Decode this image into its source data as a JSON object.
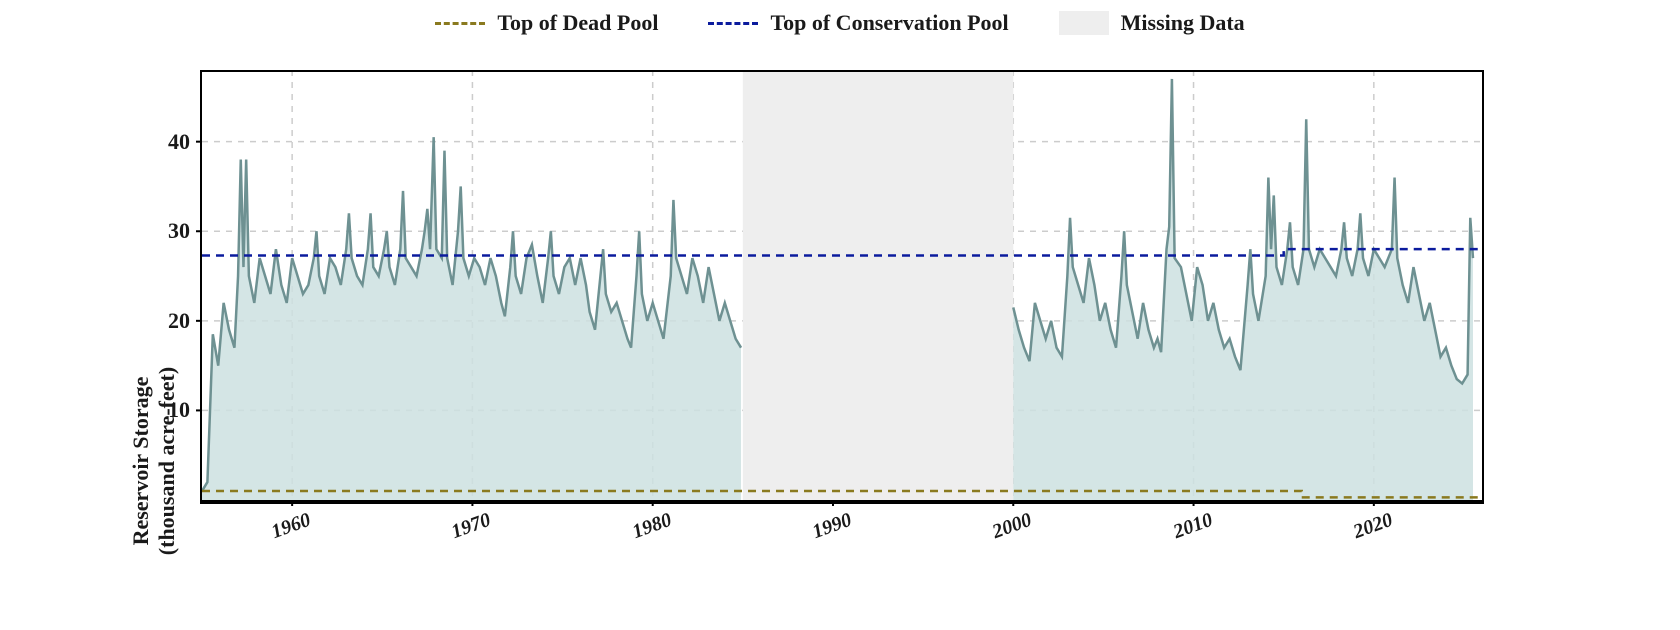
{
  "legend": {
    "dead_pool": "Top of Dead Pool",
    "conservation_pool": "Top of Conservation Pool",
    "missing_data": "Missing Data"
  },
  "colors": {
    "dead_pool_line": "#8a7a1f",
    "conservation_line": "#0b1b9d",
    "missing_data_fill": "#eeeeee",
    "series_line": "#6e9192",
    "series_fill": "#cde1e1",
    "grid": "#cccccc",
    "axis": "#000000",
    "text": "#1a1a1a",
    "background": "#ffffff"
  },
  "chart": {
    "type": "area",
    "ylabel_line1": "Reservoir Storage",
    "ylabel_line2": "(thousand acre-feet)",
    "xlim": [
      1955,
      2026
    ],
    "ylim": [
      0,
      48
    ],
    "yticks": [
      10,
      20,
      30,
      40
    ],
    "xticks": [
      1960,
      1970,
      1980,
      1990,
      2000,
      2010,
      2020
    ],
    "missing_data_range": [
      1985,
      2000
    ],
    "dead_pool_level_pre": 1.0,
    "dead_pool_level_post": 0.3,
    "dead_pool_step_year": 2016,
    "conservation_level_pre": 27.3,
    "conservation_level_post": 28.0,
    "conservation_step_year": 2015,
    "line_width": 2.5,
    "dash_pattern": "8 6",
    "series": [
      {
        "x": 1955.0,
        "y": 1.0
      },
      {
        "x": 1955.3,
        "y": 2.0
      },
      {
        "x": 1955.6,
        "y": 18.5
      },
      {
        "x": 1955.9,
        "y": 15.0
      },
      {
        "x": 1956.2,
        "y": 22.0
      },
      {
        "x": 1956.5,
        "y": 19.0
      },
      {
        "x": 1956.8,
        "y": 17.0
      },
      {
        "x": 1957.0,
        "y": 25.0
      },
      {
        "x": 1957.15,
        "y": 38.0
      },
      {
        "x": 1957.3,
        "y": 26.0
      },
      {
        "x": 1957.45,
        "y": 38.0
      },
      {
        "x": 1957.6,
        "y": 25.0
      },
      {
        "x": 1957.9,
        "y": 22.0
      },
      {
        "x": 1958.2,
        "y": 27.0
      },
      {
        "x": 1958.5,
        "y": 25.0
      },
      {
        "x": 1958.8,
        "y": 23.0
      },
      {
        "x": 1959.1,
        "y": 28.0
      },
      {
        "x": 1959.4,
        "y": 24.0
      },
      {
        "x": 1959.7,
        "y": 22.0
      },
      {
        "x": 1960.0,
        "y": 27.0
      },
      {
        "x": 1960.3,
        "y": 25.0
      },
      {
        "x": 1960.6,
        "y": 23.0
      },
      {
        "x": 1960.9,
        "y": 24.0
      },
      {
        "x": 1961.2,
        "y": 27.0
      },
      {
        "x": 1961.35,
        "y": 30.0
      },
      {
        "x": 1961.5,
        "y": 25.0
      },
      {
        "x": 1961.8,
        "y": 23.0
      },
      {
        "x": 1962.1,
        "y": 27.0
      },
      {
        "x": 1962.4,
        "y": 26.0
      },
      {
        "x": 1962.7,
        "y": 24.0
      },
      {
        "x": 1963.0,
        "y": 28.0
      },
      {
        "x": 1963.15,
        "y": 32.0
      },
      {
        "x": 1963.3,
        "y": 27.0
      },
      {
        "x": 1963.6,
        "y": 25.0
      },
      {
        "x": 1963.9,
        "y": 24.0
      },
      {
        "x": 1964.2,
        "y": 28.0
      },
      {
        "x": 1964.35,
        "y": 32.0
      },
      {
        "x": 1964.5,
        "y": 26.0
      },
      {
        "x": 1964.8,
        "y": 25.0
      },
      {
        "x": 1965.1,
        "y": 28.0
      },
      {
        "x": 1965.25,
        "y": 30.0
      },
      {
        "x": 1965.4,
        "y": 26.0
      },
      {
        "x": 1965.7,
        "y": 24.0
      },
      {
        "x": 1966.0,
        "y": 28.0
      },
      {
        "x": 1966.15,
        "y": 34.5
      },
      {
        "x": 1966.3,
        "y": 27.0
      },
      {
        "x": 1966.6,
        "y": 26.0
      },
      {
        "x": 1966.9,
        "y": 25.0
      },
      {
        "x": 1967.2,
        "y": 28.0
      },
      {
        "x": 1967.35,
        "y": 30.0
      },
      {
        "x": 1967.5,
        "y": 32.5
      },
      {
        "x": 1967.65,
        "y": 28.0
      },
      {
        "x": 1967.85,
        "y": 40.5
      },
      {
        "x": 1968.0,
        "y": 28.0
      },
      {
        "x": 1968.3,
        "y": 27.0
      },
      {
        "x": 1968.45,
        "y": 39.0
      },
      {
        "x": 1968.6,
        "y": 27.0
      },
      {
        "x": 1968.9,
        "y": 24.0
      },
      {
        "x": 1969.2,
        "y": 30.0
      },
      {
        "x": 1969.35,
        "y": 35.0
      },
      {
        "x": 1969.5,
        "y": 27.0
      },
      {
        "x": 1969.8,
        "y": 25.0
      },
      {
        "x": 1970.1,
        "y": 27.0
      },
      {
        "x": 1970.4,
        "y": 26.0
      },
      {
        "x": 1970.7,
        "y": 24.0
      },
      {
        "x": 1971.0,
        "y": 27.0
      },
      {
        "x": 1971.3,
        "y": 25.0
      },
      {
        "x": 1971.6,
        "y": 22.0
      },
      {
        "x": 1971.8,
        "y": 20.5
      },
      {
        "x": 1972.1,
        "y": 26.0
      },
      {
        "x": 1972.25,
        "y": 30.0
      },
      {
        "x": 1972.4,
        "y": 25.0
      },
      {
        "x": 1972.7,
        "y": 23.0
      },
      {
        "x": 1973.0,
        "y": 27.0
      },
      {
        "x": 1973.3,
        "y": 28.5
      },
      {
        "x": 1973.6,
        "y": 25.0
      },
      {
        "x": 1973.9,
        "y": 22.0
      },
      {
        "x": 1974.2,
        "y": 27.0
      },
      {
        "x": 1974.35,
        "y": 30.0
      },
      {
        "x": 1974.5,
        "y": 25.0
      },
      {
        "x": 1974.8,
        "y": 23.0
      },
      {
        "x": 1975.1,
        "y": 26.0
      },
      {
        "x": 1975.4,
        "y": 27.0
      },
      {
        "x": 1975.7,
        "y": 24.0
      },
      {
        "x": 1976.0,
        "y": 27.0
      },
      {
        "x": 1976.3,
        "y": 24.0
      },
      {
        "x": 1976.5,
        "y": 21.0
      },
      {
        "x": 1976.8,
        "y": 19.0
      },
      {
        "x": 1977.1,
        "y": 25.0
      },
      {
        "x": 1977.25,
        "y": 28.0
      },
      {
        "x": 1977.4,
        "y": 23.0
      },
      {
        "x": 1977.7,
        "y": 21.0
      },
      {
        "x": 1978.0,
        "y": 22.0
      },
      {
        "x": 1978.3,
        "y": 20.0
      },
      {
        "x": 1978.6,
        "y": 18.0
      },
      {
        "x": 1978.8,
        "y": 17.0
      },
      {
        "x": 1979.1,
        "y": 25.0
      },
      {
        "x": 1979.25,
        "y": 30.0
      },
      {
        "x": 1979.4,
        "y": 23.0
      },
      {
        "x": 1979.7,
        "y": 20.0
      },
      {
        "x": 1980.0,
        "y": 22.0
      },
      {
        "x": 1980.3,
        "y": 20.0
      },
      {
        "x": 1980.6,
        "y": 18.0
      },
      {
        "x": 1981.0,
        "y": 25.0
      },
      {
        "x": 1981.15,
        "y": 33.5
      },
      {
        "x": 1981.3,
        "y": 27.0
      },
      {
        "x": 1981.6,
        "y": 25.0
      },
      {
        "x": 1981.9,
        "y": 23.0
      },
      {
        "x": 1982.2,
        "y": 27.0
      },
      {
        "x": 1982.5,
        "y": 25.0
      },
      {
        "x": 1982.8,
        "y": 22.0
      },
      {
        "x": 1983.1,
        "y": 26.0
      },
      {
        "x": 1983.4,
        "y": 23.0
      },
      {
        "x": 1983.7,
        "y": 20.0
      },
      {
        "x": 1984.0,
        "y": 22.0
      },
      {
        "x": 1984.3,
        "y": 20.0
      },
      {
        "x": 1984.6,
        "y": 18.0
      },
      {
        "x": 1984.9,
        "y": 17.0
      }
    ],
    "series_post": [
      {
        "x": 2000.0,
        "y": 21.5
      },
      {
        "x": 2000.3,
        "y": 19.0
      },
      {
        "x": 2000.6,
        "y": 17.0
      },
      {
        "x": 2000.9,
        "y": 15.5
      },
      {
        "x": 2001.2,
        "y": 22.0
      },
      {
        "x": 2001.5,
        "y": 20.0
      },
      {
        "x": 2001.8,
        "y": 18.0
      },
      {
        "x": 2002.1,
        "y": 20.0
      },
      {
        "x": 2002.4,
        "y": 17.0
      },
      {
        "x": 2002.7,
        "y": 16.0
      },
      {
        "x": 2003.0,
        "y": 25.0
      },
      {
        "x": 2003.15,
        "y": 31.5
      },
      {
        "x": 2003.3,
        "y": 26.0
      },
      {
        "x": 2003.6,
        "y": 24.0
      },
      {
        "x": 2003.9,
        "y": 22.0
      },
      {
        "x": 2004.2,
        "y": 27.0
      },
      {
        "x": 2004.5,
        "y": 24.0
      },
      {
        "x": 2004.8,
        "y": 20.0
      },
      {
        "x": 2005.1,
        "y": 22.0
      },
      {
        "x": 2005.4,
        "y": 19.0
      },
      {
        "x": 2005.7,
        "y": 17.0
      },
      {
        "x": 2006.0,
        "y": 25.0
      },
      {
        "x": 2006.15,
        "y": 30.0
      },
      {
        "x": 2006.3,
        "y": 24.0
      },
      {
        "x": 2006.6,
        "y": 21.0
      },
      {
        "x": 2006.9,
        "y": 18.0
      },
      {
        "x": 2007.2,
        "y": 22.0
      },
      {
        "x": 2007.5,
        "y": 19.0
      },
      {
        "x": 2007.8,
        "y": 17.0
      },
      {
        "x": 2008.0,
        "y": 18.0
      },
      {
        "x": 2008.2,
        "y": 16.5
      },
      {
        "x": 2008.5,
        "y": 28.0
      },
      {
        "x": 2008.65,
        "y": 30.5
      },
      {
        "x": 2008.8,
        "y": 47.0
      },
      {
        "x": 2008.95,
        "y": 27.0
      },
      {
        "x": 2009.3,
        "y": 26.0
      },
      {
        "x": 2009.6,
        "y": 23.0
      },
      {
        "x": 2009.9,
        "y": 20.0
      },
      {
        "x": 2010.2,
        "y": 26.0
      },
      {
        "x": 2010.5,
        "y": 24.0
      },
      {
        "x": 2010.8,
        "y": 20.0
      },
      {
        "x": 2011.1,
        "y": 22.0
      },
      {
        "x": 2011.4,
        "y": 19.0
      },
      {
        "x": 2011.7,
        "y": 17.0
      },
      {
        "x": 2012.0,
        "y": 18.0
      },
      {
        "x": 2012.3,
        "y": 16.0
      },
      {
        "x": 2012.6,
        "y": 14.5
      },
      {
        "x": 2013.0,
        "y": 24.0
      },
      {
        "x": 2013.15,
        "y": 28.0
      },
      {
        "x": 2013.3,
        "y": 23.0
      },
      {
        "x": 2013.6,
        "y": 20.0
      },
      {
        "x": 2014.0,
        "y": 25.0
      },
      {
        "x": 2014.15,
        "y": 36.0
      },
      {
        "x": 2014.3,
        "y": 28.0
      },
      {
        "x": 2014.45,
        "y": 34.0
      },
      {
        "x": 2014.6,
        "y": 26.0
      },
      {
        "x": 2014.9,
        "y": 24.0
      },
      {
        "x": 2015.2,
        "y": 28.0
      },
      {
        "x": 2015.35,
        "y": 31.0
      },
      {
        "x": 2015.5,
        "y": 26.0
      },
      {
        "x": 2015.8,
        "y": 24.0
      },
      {
        "x": 2016.1,
        "y": 28.0
      },
      {
        "x": 2016.25,
        "y": 42.5
      },
      {
        "x": 2016.4,
        "y": 28.0
      },
      {
        "x": 2016.7,
        "y": 26.0
      },
      {
        "x": 2017.0,
        "y": 28.0
      },
      {
        "x": 2017.3,
        "y": 27.0
      },
      {
        "x": 2017.6,
        "y": 26.0
      },
      {
        "x": 2017.9,
        "y": 25.0
      },
      {
        "x": 2018.2,
        "y": 28.0
      },
      {
        "x": 2018.35,
        "y": 31.0
      },
      {
        "x": 2018.5,
        "y": 27.0
      },
      {
        "x": 2018.8,
        "y": 25.0
      },
      {
        "x": 2019.1,
        "y": 28.0
      },
      {
        "x": 2019.25,
        "y": 32.0
      },
      {
        "x": 2019.4,
        "y": 27.0
      },
      {
        "x": 2019.7,
        "y": 25.0
      },
      {
        "x": 2020.0,
        "y": 28.0
      },
      {
        "x": 2020.3,
        "y": 27.0
      },
      {
        "x": 2020.6,
        "y": 26.0
      },
      {
        "x": 2021.0,
        "y": 28.0
      },
      {
        "x": 2021.15,
        "y": 36.0
      },
      {
        "x": 2021.3,
        "y": 27.0
      },
      {
        "x": 2021.6,
        "y": 24.0
      },
      {
        "x": 2021.9,
        "y": 22.0
      },
      {
        "x": 2022.2,
        "y": 26.0
      },
      {
        "x": 2022.5,
        "y": 23.0
      },
      {
        "x": 2022.8,
        "y": 20.0
      },
      {
        "x": 2023.1,
        "y": 22.0
      },
      {
        "x": 2023.4,
        "y": 19.0
      },
      {
        "x": 2023.7,
        "y": 16.0
      },
      {
        "x": 2024.0,
        "y": 17.0
      },
      {
        "x": 2024.3,
        "y": 15.0
      },
      {
        "x": 2024.6,
        "y": 13.5
      },
      {
        "x": 2024.9,
        "y": 13.0
      },
      {
        "x": 2025.2,
        "y": 14.0
      },
      {
        "x": 2025.35,
        "y": 31.5
      },
      {
        "x": 2025.5,
        "y": 27.0
      }
    ]
  }
}
